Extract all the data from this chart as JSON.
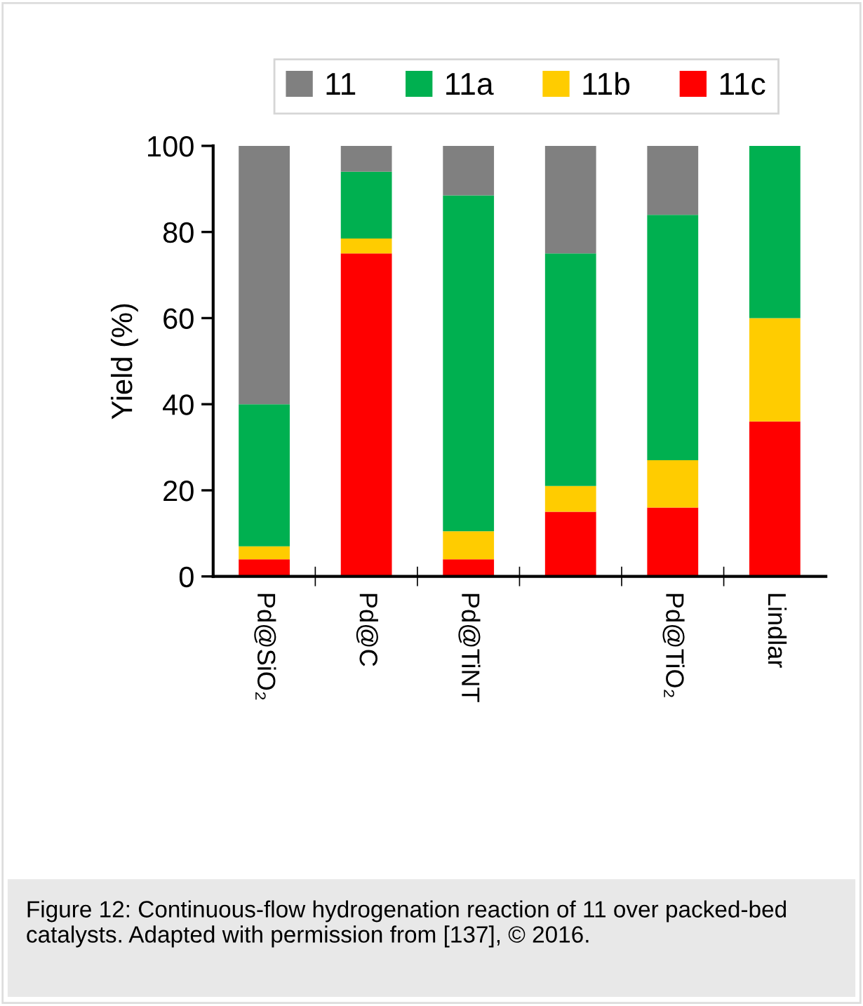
{
  "chart_data": {
    "type": "bar",
    "stacked": true,
    "ylabel": "Yield (%)",
    "categories": [
      "Pd@SiO₂",
      "Pd@C",
      "Pd@TiNT",
      null,
      "Pd@TiO₂",
      "Lindlar"
    ],
    "series": [
      {
        "name": "11c",
        "color": "#ff0000",
        "values": [
          4,
          75,
          4,
          15,
          16,
          36
        ]
      },
      {
        "name": "11b",
        "color": "#ffcc00",
        "values": [
          3,
          3.5,
          6.5,
          6,
          11,
          24
        ]
      },
      {
        "name": "11a",
        "color": "#00b050",
        "values": [
          33,
          15.5,
          78,
          54,
          57,
          40
        ]
      },
      {
        "name": "11",
        "color": "#808080",
        "values": [
          60,
          6,
          11.5,
          25,
          16,
          0
        ]
      }
    ],
    "ylim": [
      0,
      100
    ],
    "yticks": [
      0,
      20,
      40,
      60,
      80,
      100
    ],
    "grid": false,
    "legend": "top",
    "annotations": [
      "Figure 12: Continuous-flow hydrogenation reaction of 11 over packed-bed catalysts. Adapted with permission from [137], © 2016."
    ]
  }
}
